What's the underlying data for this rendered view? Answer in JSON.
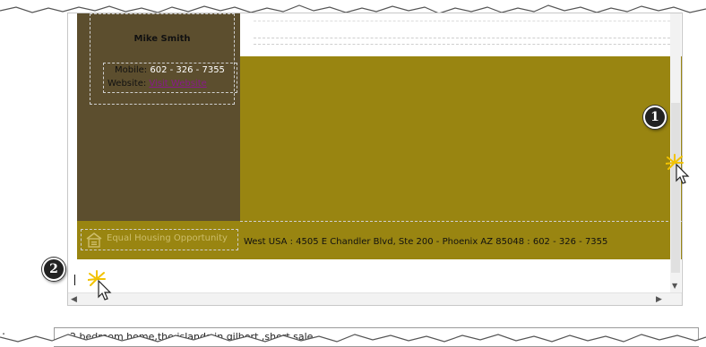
{
  "signature": {
    "agent_name": "Mike Smith",
    "mobile_label": "Mobile:",
    "mobile_value": "602 - 326 - 7355",
    "website_label": "Website:",
    "website_link": "Visit Website"
  },
  "footer": {
    "equal_housing_text": "Equal Housing Opportunity",
    "address_text": "West USA : 4505 E Chandler Blvd, Ste 200 - Phoenix AZ 85048 : 602 - 326 - 7355"
  },
  "callouts": {
    "first": "1",
    "second": "2"
  },
  "description_field": {
    "label": ":",
    "value": "2 bedroom home,the islands in gilbert ,short sale"
  },
  "colors": {
    "sidebar_brown": "#5c4e2e",
    "olive_accent": "#998511",
    "link_purple": "#8a1a8a"
  }
}
